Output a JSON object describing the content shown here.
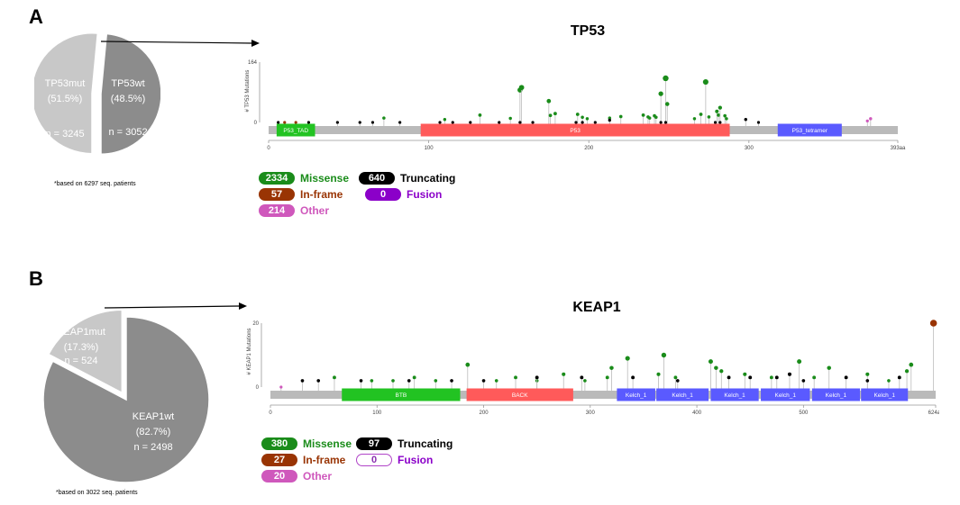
{
  "panels": {
    "a": {
      "letter": "A",
      "note": "*based on 6297 seq. patients",
      "pie": {
        "slices": [
          {
            "name": "TP53mut",
            "pct": "(51.5%)",
            "n": "n = 3245",
            "value": 51.5,
            "color": "#c8c8c8"
          },
          {
            "name": "TP53wt",
            "pct": "(48.5%)",
            "n": "n = 3052",
            "value": 48.5,
            "color": "#8c8c8c"
          }
        ]
      },
      "gene": "TP53",
      "ylabel": "# TP53 Mutations",
      "ymax_label": "164",
      "yzero_label": "0",
      "length": 393,
      "xticks": [
        "0",
        "100",
        "200",
        "300",
        "393aa"
      ],
      "xtick_values": [
        0,
        100,
        200,
        300,
        393
      ],
      "domains": [
        {
          "name": "P53_TAD",
          "start": 5,
          "end": 29,
          "color": "#22c322"
        },
        {
          "name": "P53",
          "start": 95,
          "end": 288,
          "color": "#ff5a5a"
        },
        {
          "name": "P53_tetramer",
          "start": 318,
          "end": 358,
          "color": "#5a5aff"
        }
      ],
      "legend": {
        "missense": {
          "count": "2334",
          "label": "Missense"
        },
        "truncating": {
          "count": "640",
          "label": "Truncating"
        },
        "inframe": {
          "count": "57",
          "label": "In-frame"
        },
        "fusion": {
          "count": "0",
          "label": "Fusion"
        },
        "other": {
          "count": "214",
          "label": "Other"
        }
      }
    },
    "b": {
      "letter": "B",
      "note": "*based on 3022 seq. patients",
      "pie": {
        "slices": [
          {
            "name": "KEAP1mut",
            "pct": "(17.3%)",
            "n": "n = 524",
            "value": 17.3,
            "color": "#c8c8c8"
          },
          {
            "name": "KEAP1wt",
            "pct": "(82.7%)",
            "n": "n = 2498",
            "value": 82.7,
            "color": "#8c8c8c"
          }
        ]
      },
      "gene": "KEAP1",
      "ylabel": "# KEAP1 Mutations",
      "ymax_label": "20",
      "yzero_label": "0",
      "length": 624,
      "xticks": [
        "0",
        "100",
        "200",
        "300",
        "400",
        "500",
        "624aa"
      ],
      "xtick_values": [
        0,
        100,
        200,
        300,
        400,
        500,
        624
      ],
      "domains": [
        {
          "name": "BTB",
          "start": 67,
          "end": 178,
          "color": "#22c322"
        },
        {
          "name": "BACK",
          "start": 184,
          "end": 284,
          "color": "#ff5a5a"
        },
        {
          "name": "Kelch_1",
          "start": 325,
          "end": 361,
          "color": "#5a5aff"
        },
        {
          "name": "Kelch_1",
          "start": 362,
          "end": 411,
          "color": "#5a5aff"
        },
        {
          "name": "Kelch_1",
          "start": 413,
          "end": 458,
          "color": "#5a5aff"
        },
        {
          "name": "Kelch_1",
          "start": 460,
          "end": 506,
          "color": "#5a5aff"
        },
        {
          "name": "Kelch_1",
          "start": 508,
          "end": 553,
          "color": "#5a5aff"
        },
        {
          "name": "Kelch_1",
          "start": 554,
          "end": 598,
          "color": "#5a5aff"
        }
      ],
      "legend": {
        "missense": {
          "count": "380",
          "label": "Missense"
        },
        "truncating": {
          "count": "97",
          "label": "Truncating"
        },
        "inframe": {
          "count": "27",
          "label": "In-frame"
        },
        "fusion": {
          "count": "0",
          "label": "Fusion"
        },
        "other": {
          "count": "20",
          "label": "Other"
        }
      }
    }
  },
  "colors": {
    "missense": "#1a8c1a",
    "truncating": "#000000",
    "inframe": "#993404",
    "fusion": "#8b00c9",
    "other": "#cf58bc",
    "backbone": "#bababa"
  },
  "chart_data": [
    {
      "type": "pie",
      "categories": [
        "TP53mut",
        "TP53wt"
      ],
      "values": [
        51.5,
        48.5
      ],
      "counts": [
        3245,
        3052
      ]
    },
    {
      "type": "scatter",
      "title": "TP53",
      "ylabel": "# TP53 Mutations",
      "xlim": [
        0,
        393
      ],
      "ylim": [
        0,
        164
      ],
      "series": [
        {
          "name": "Missense",
          "points": [
            [
              72,
              12
            ],
            [
              110,
              8
            ],
            [
              132,
              20
            ],
            [
              151,
              11
            ],
            [
              157,
              88
            ],
            [
              158,
              95
            ],
            [
              175,
              58
            ],
            [
              176,
              19
            ],
            [
              179,
              24
            ],
            [
              193,
              22
            ],
            [
              196,
              14
            ],
            [
              199,
              10
            ],
            [
              213,
              12
            ],
            [
              220,
              16
            ],
            [
              234,
              20
            ],
            [
              237,
              15
            ],
            [
              238,
              12
            ],
            [
              241,
              18
            ],
            [
              242,
              14
            ],
            [
              245,
              78
            ],
            [
              248,
              120
            ],
            [
              249,
              50
            ],
            [
              266,
              10
            ],
            [
              270,
              22
            ],
            [
              273,
              110
            ],
            [
              275,
              15
            ],
            [
              280,
              30
            ],
            [
              281,
              20
            ],
            [
              282,
              40
            ],
            [
              285,
              18
            ],
            [
              286,
              10
            ]
          ]
        },
        {
          "name": "Truncating",
          "points": [
            [
              6,
              0
            ],
            [
              25,
              0
            ],
            [
              43,
              0
            ],
            [
              57,
              0
            ],
            [
              65,
              0
            ],
            [
              82,
              0
            ],
            [
              107,
              0
            ],
            [
              115,
              0
            ],
            [
              126,
              0
            ],
            [
              144,
              0
            ],
            [
              157,
              0
            ],
            [
              165,
              0
            ],
            [
              192,
              0
            ],
            [
              196,
              0
            ],
            [
              204,
              0
            ],
            [
              213,
              6
            ],
            [
              245,
              0
            ],
            [
              248,
              0
            ],
            [
              279,
              0
            ],
            [
              282,
              0
            ],
            [
              298,
              8
            ],
            [
              306,
              0
            ]
          ]
        },
        {
          "name": "In-frame",
          "points": [
            [
              10,
              0
            ],
            [
              17,
              0
            ]
          ]
        },
        {
          "name": "Other",
          "points": [
            [
              374,
              4
            ],
            [
              376,
              10
            ]
          ]
        }
      ]
    },
    {
      "type": "pie",
      "categories": [
        "KEAP1mut",
        "KEAP1wt"
      ],
      "values": [
        17.3,
        82.7
      ],
      "counts": [
        524,
        2498
      ]
    },
    {
      "type": "scatter",
      "title": "KEAP1",
      "ylabel": "# KEAP1 Mutations",
      "xlim": [
        0,
        624
      ],
      "ylim": [
        0,
        20
      ],
      "series": [
        {
          "name": "Missense",
          "points": [
            [
              60,
              3
            ],
            [
              95,
              2
            ],
            [
              115,
              2
            ],
            [
              135,
              3
            ],
            [
              155,
              2
            ],
            [
              185,
              7
            ],
            [
              212,
              2
            ],
            [
              230,
              3
            ],
            [
              250,
              2
            ],
            [
              275,
              4
            ],
            [
              295,
              2
            ],
            [
              316,
              3
            ],
            [
              320,
              6
            ],
            [
              335,
              9
            ],
            [
              364,
              4
            ],
            [
              369,
              10
            ],
            [
              380,
              3
            ],
            [
              413,
              8
            ],
            [
              418,
              6
            ],
            [
              423,
              5
            ],
            [
              445,
              4
            ],
            [
              470,
              3
            ],
            [
              496,
              8
            ],
            [
              510,
              3
            ],
            [
              524,
              6
            ],
            [
              560,
              4
            ],
            [
              580,
              2
            ],
            [
              597,
              5
            ],
            [
              601,
              7
            ]
          ]
        },
        {
          "name": "Truncating",
          "points": [
            [
              30,
              2
            ],
            [
              45,
              2
            ],
            [
              85,
              2
            ],
            [
              130,
              2
            ],
            [
              170,
              2
            ],
            [
              200,
              2
            ],
            [
              250,
              3
            ],
            [
              292,
              3
            ],
            [
              340,
              3
            ],
            [
              382,
              2
            ],
            [
              430,
              3
            ],
            [
              450,
              3
            ],
            [
              475,
              3
            ],
            [
              487,
              4
            ],
            [
              500,
              2
            ],
            [
              540,
              3
            ],
            [
              560,
              2
            ],
            [
              590,
              3
            ]
          ]
        },
        {
          "name": "In-frame",
          "points": [
            [
              622,
              20
            ]
          ]
        },
        {
          "name": "Other",
          "points": [
            [
              10,
              0
            ]
          ]
        }
      ]
    }
  ]
}
